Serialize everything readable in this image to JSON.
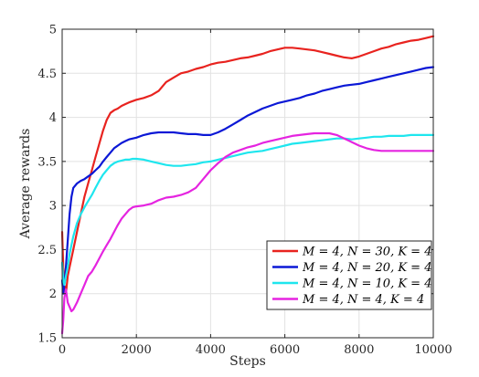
{
  "chart_data": {
    "type": "line",
    "xlabel": "Steps",
    "ylabel": "Average rewards",
    "xlim": [
      0,
      10000
    ],
    "ylim": [
      1.5,
      5
    ],
    "xticks": [
      0,
      2000,
      4000,
      6000,
      8000,
      10000
    ],
    "xtick_labels": [
      "0",
      "2000",
      "4000",
      "6000",
      "8000",
      "10000"
    ],
    "yticks": [
      1.5,
      2,
      2.5,
      3,
      3.5,
      4,
      4.5,
      5
    ],
    "ytick_labels": [
      "1.5",
      "2",
      "2.5",
      "3",
      "3.5",
      "4",
      "4.5",
      "5"
    ],
    "grid": true,
    "legend_position": "lower-right",
    "series": [
      {
        "name": "M = 4, N = 30, K = 4",
        "color": "#e8231f",
        "x": [
          0,
          30,
          60,
          100,
          150,
          200,
          300,
          400,
          500,
          600,
          700,
          800,
          900,
          1000,
          1100,
          1200,
          1300,
          1400,
          1500,
          1600,
          1700,
          1800,
          2000,
          2200,
          2400,
          2600,
          2800,
          3000,
          3200,
          3400,
          3600,
          3800,
          4000,
          4200,
          4400,
          4600,
          4800,
          5000,
          5200,
          5400,
          5600,
          5800,
          6000,
          6200,
          6400,
          6600,
          6800,
          7000,
          7200,
          7400,
          7600,
          7800,
          8000,
          8200,
          8400,
          8600,
          8800,
          9000,
          9200,
          9400,
          9600,
          9800,
          10000
        ],
        "y": [
          2.7,
          2.3,
          2.1,
          2.0,
          2.2,
          2.3,
          2.5,
          2.7,
          2.9,
          3.1,
          3.25,
          3.4,
          3.55,
          3.7,
          3.85,
          3.97,
          4.05,
          4.08,
          4.1,
          4.13,
          4.15,
          4.17,
          4.2,
          4.22,
          4.25,
          4.3,
          4.4,
          4.45,
          4.5,
          4.52,
          4.55,
          4.57,
          4.6,
          4.62,
          4.63,
          4.65,
          4.67,
          4.68,
          4.7,
          4.72,
          4.75,
          4.77,
          4.79,
          4.79,
          4.78,
          4.77,
          4.76,
          4.74,
          4.72,
          4.7,
          4.68,
          4.67,
          4.69,
          4.72,
          4.75,
          4.78,
          4.8,
          4.83,
          4.85,
          4.87,
          4.88,
          4.9,
          4.92
        ]
      },
      {
        "name": "M = 4, N = 20, K = 4",
        "color": "#0b18d6",
        "x": [
          0,
          30,
          60,
          100,
          150,
          200,
          250,
          300,
          400,
          500,
          600,
          700,
          800,
          900,
          1000,
          1100,
          1200,
          1300,
          1400,
          1500,
          1600,
          1700,
          1800,
          2000,
          2200,
          2400,
          2600,
          2800,
          3000,
          3200,
          3400,
          3600,
          3800,
          4000,
          4200,
          4400,
          4600,
          4800,
          5000,
          5200,
          5400,
          5600,
          5800,
          6000,
          6200,
          6400,
          6600,
          6800,
          7000,
          7200,
          7400,
          7600,
          7800,
          8000,
          8200,
          8400,
          8600,
          8800,
          9000,
          9200,
          9400,
          9600,
          9800,
          10000
        ],
        "y": [
          2.15,
          2.0,
          2.1,
          2.3,
          2.6,
          2.9,
          3.1,
          3.2,
          3.25,
          3.28,
          3.3,
          3.33,
          3.36,
          3.4,
          3.44,
          3.5,
          3.55,
          3.6,
          3.65,
          3.68,
          3.71,
          3.73,
          3.75,
          3.77,
          3.8,
          3.82,
          3.83,
          3.83,
          3.83,
          3.82,
          3.81,
          3.81,
          3.8,
          3.8,
          3.83,
          3.87,
          3.92,
          3.97,
          4.02,
          4.06,
          4.1,
          4.13,
          4.16,
          4.18,
          4.2,
          4.22,
          4.25,
          4.27,
          4.3,
          4.32,
          4.34,
          4.36,
          4.37,
          4.38,
          4.4,
          4.42,
          4.44,
          4.46,
          4.48,
          4.5,
          4.52,
          4.54,
          4.56,
          4.57
        ]
      },
      {
        "name": "M = 4, N = 10, K = 4",
        "color": "#1ee6ee",
        "x": [
          0,
          30,
          60,
          100,
          150,
          200,
          300,
          400,
          500,
          600,
          700,
          800,
          900,
          1000,
          1100,
          1200,
          1300,
          1400,
          1500,
          1600,
          1700,
          1800,
          1900,
          2000,
          2200,
          2400,
          2600,
          2800,
          3000,
          3200,
          3400,
          3600,
          3800,
          4000,
          4200,
          4400,
          4600,
          4800,
          5000,
          5200,
          5400,
          5600,
          5800,
          6000,
          6200,
          6400,
          6600,
          6800,
          7000,
          7200,
          7400,
          7600,
          7800,
          8000,
          8200,
          8400,
          8600,
          8800,
          9000,
          9200,
          9400,
          9600,
          9800,
          10000
        ],
        "y": [
          2.35,
          2.15,
          2.1,
          2.2,
          2.3,
          2.45,
          2.65,
          2.8,
          2.9,
          2.98,
          3.05,
          3.12,
          3.2,
          3.28,
          3.35,
          3.4,
          3.45,
          3.48,
          3.5,
          3.51,
          3.52,
          3.52,
          3.53,
          3.53,
          3.52,
          3.5,
          3.48,
          3.46,
          3.45,
          3.45,
          3.46,
          3.47,
          3.49,
          3.5,
          3.52,
          3.54,
          3.56,
          3.58,
          3.6,
          3.61,
          3.62,
          3.64,
          3.66,
          3.68,
          3.7,
          3.71,
          3.72,
          3.73,
          3.74,
          3.75,
          3.76,
          3.76,
          3.75,
          3.76,
          3.77,
          3.78,
          3.78,
          3.79,
          3.79,
          3.79,
          3.8,
          3.8,
          3.8,
          3.8
        ]
      },
      {
        "name": "M = 4, N = 4, K = 4",
        "color": "#e524e0",
        "x": [
          0,
          30,
          60,
          100,
          150,
          200,
          250,
          300,
          400,
          500,
          600,
          700,
          800,
          900,
          1000,
          1100,
          1200,
          1300,
          1400,
          1500,
          1600,
          1700,
          1800,
          1900,
          2000,
          2200,
          2400,
          2600,
          2800,
          3000,
          3200,
          3400,
          3600,
          3800,
          4000,
          4200,
          4400,
          4600,
          4800,
          5000,
          5200,
          5400,
          5600,
          5800,
          6000,
          6200,
          6400,
          6600,
          6800,
          7000,
          7200,
          7400,
          7600,
          7800,
          8000,
          8200,
          8400,
          8600,
          8800,
          9000,
          9200,
          9400,
          9600,
          9800,
          10000
        ],
        "y": [
          1.55,
          1.7,
          1.95,
          2.05,
          1.9,
          1.85,
          1.8,
          1.82,
          1.9,
          2.0,
          2.1,
          2.2,
          2.25,
          2.32,
          2.4,
          2.48,
          2.55,
          2.62,
          2.7,
          2.78,
          2.85,
          2.9,
          2.95,
          2.98,
          2.99,
          3.0,
          3.02,
          3.06,
          3.09,
          3.1,
          3.12,
          3.15,
          3.2,
          3.3,
          3.4,
          3.48,
          3.55,
          3.6,
          3.63,
          3.66,
          3.68,
          3.71,
          3.73,
          3.75,
          3.77,
          3.79,
          3.8,
          3.81,
          3.82,
          3.82,
          3.82,
          3.8,
          3.76,
          3.72,
          3.68,
          3.65,
          3.63,
          3.62,
          3.62,
          3.62,
          3.62,
          3.62,
          3.62,
          3.62,
          3.62
        ]
      }
    ]
  }
}
